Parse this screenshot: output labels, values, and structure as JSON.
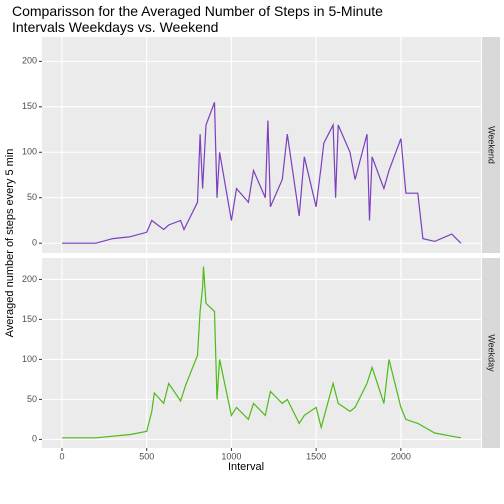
{
  "chart_data": [
    {
      "type": "line",
      "title": "Comparisson for the Averaged Number of Steps in 5-Minute Intervals Weekdays vs. Weekend",
      "xlabel": "Interval",
      "ylabel": "Averaged number of steps every 5 min",
      "x": [
        0,
        100,
        200,
        300,
        400,
        500,
        530,
        600,
        630,
        700,
        720,
        800,
        815,
        830,
        850,
        900,
        915,
        930,
        1000,
        1030,
        1100,
        1130,
        1200,
        1215,
        1230,
        1300,
        1330,
        1400,
        1430,
        1500,
        1530,
        1545,
        1600,
        1615,
        1630,
        1700,
        1730,
        1800,
        1815,
        1830,
        1900,
        1930,
        2000,
        2030,
        2100,
        2130,
        2200,
        2300,
        2355
      ],
      "series": [
        {
          "name": "Weekend",
          "color": "#7b3fbf",
          "values": [
            0,
            0,
            0,
            5,
            7,
            12,
            25,
            15,
            20,
            25,
            15,
            45,
            120,
            60,
            130,
            155,
            50,
            100,
            25,
            60,
            45,
            80,
            50,
            135,
            40,
            70,
            120,
            30,
            95,
            40,
            85,
            110,
            130,
            50,
            130,
            100,
            70,
            120,
            25,
            95,
            60,
            80,
            115,
            55,
            55,
            5,
            2,
            10,
            0
          ]
        }
      ],
      "xlim": [
        -118,
        2473
      ],
      "xticks": [
        0,
        500,
        1000,
        1500,
        2000
      ],
      "ylim": [
        -10.8,
        226.8
      ],
      "yticks": [
        0,
        50,
        100,
        150,
        200
      ],
      "grid": true
    },
    {
      "type": "line",
      "x": [
        0,
        200,
        400,
        500,
        530,
        545,
        600,
        630,
        700,
        730,
        800,
        815,
        830,
        835,
        850,
        900,
        915,
        930,
        1000,
        1030,
        1100,
        1130,
        1200,
        1230,
        1300,
        1330,
        1400,
        1430,
        1500,
        1530,
        1600,
        1630,
        1700,
        1730,
        1800,
        1830,
        1900,
        1930,
        2000,
        2030,
        2100,
        2200,
        2300,
        2355
      ],
      "series": [
        {
          "name": "Weekday",
          "color": "#4cbb17",
          "values": [
            2,
            2,
            6,
            10,
            35,
            58,
            45,
            70,
            48,
            68,
            105,
            160,
            190,
            216,
            170,
            160,
            50,
            100,
            30,
            40,
            25,
            45,
            30,
            60,
            45,
            50,
            20,
            30,
            40,
            15,
            70,
            45,
            35,
            40,
            70,
            90,
            45,
            100,
            40,
            25,
            20,
            8,
            4,
            2
          ]
        }
      ],
      "xlim": [
        -118,
        2473
      ],
      "xticks": [
        0,
        500,
        1000,
        1500,
        2000
      ],
      "ylim": [
        -10.8,
        226.8
      ],
      "yticks": [
        0,
        50,
        100,
        150,
        200
      ],
      "grid": true
    }
  ]
}
